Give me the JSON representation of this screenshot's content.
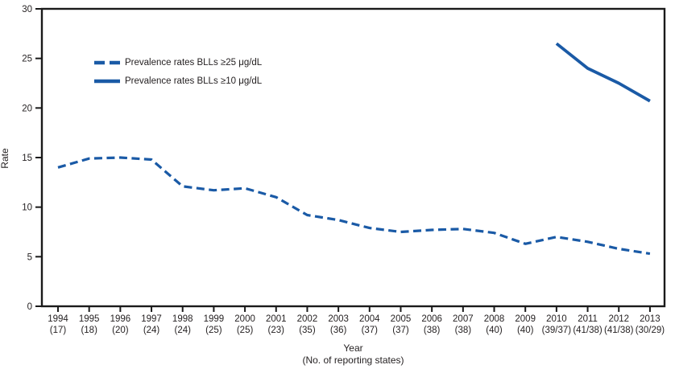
{
  "colors": {
    "series_blue": "#1a5aa6",
    "axis_black": "#1a1a1a",
    "text": "#231f20"
  },
  "chart_data": {
    "type": "line",
    "title": "",
    "ylabel": "Rate",
    "xlabel": "Year",
    "xlabel2": "(No. of reporting states)",
    "ylim": [
      0,
      30
    ],
    "yticks": [
      0,
      5,
      10,
      15,
      20,
      25,
      30
    ],
    "grid": false,
    "legend_position": "top-left-inside",
    "categories": [
      1994,
      1995,
      1996,
      1997,
      1998,
      1999,
      2000,
      2001,
      2002,
      2003,
      2004,
      2005,
      2006,
      2007,
      2008,
      2009,
      2010,
      2011,
      2012,
      2013
    ],
    "reporting_states": [
      "(17)",
      "(18)",
      "(20)",
      "(24)",
      "(24)",
      "(25)",
      "(25)",
      "(23)",
      "(35)",
      "(36)",
      "(37)",
      "(37)",
      "(38)",
      "(38)",
      "(40)",
      "(40)",
      "(39/37)",
      "(41/38)",
      "(41/38)",
      "(30/29)"
    ],
    "series": [
      {
        "name": "Prevalence rates BLLs ≥25 μg/dL",
        "style": "dashed",
        "values": [
          14.0,
          14.9,
          15.0,
          14.8,
          12.1,
          11.7,
          11.9,
          11.0,
          9.2,
          8.7,
          7.9,
          7.5,
          7.7,
          7.8,
          7.4,
          6.3,
          7.0,
          6.5,
          5.8,
          5.3
        ]
      },
      {
        "name": "Prevalence rates BLLs ≥10 μg/dL",
        "style": "solid",
        "values": [
          null,
          null,
          null,
          null,
          null,
          null,
          null,
          null,
          null,
          null,
          null,
          null,
          null,
          null,
          null,
          null,
          26.5,
          24.0,
          22.5,
          20.7
        ]
      }
    ]
  }
}
